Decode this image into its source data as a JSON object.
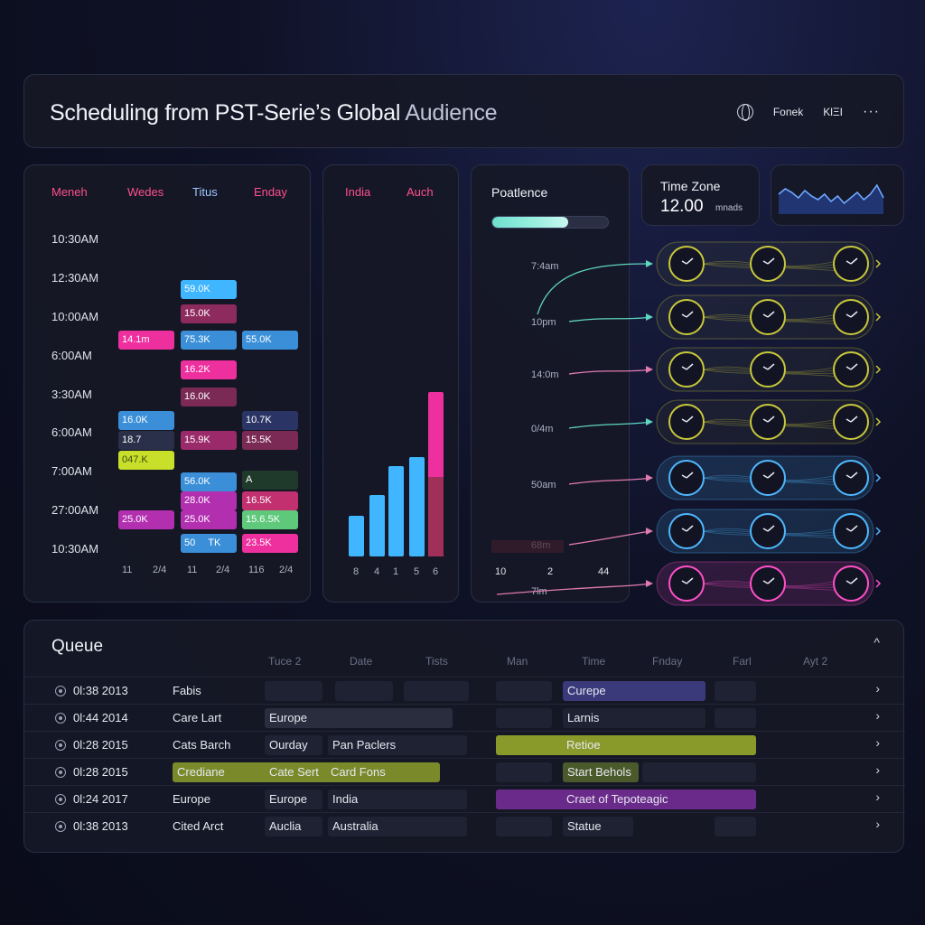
{
  "header": {
    "title_main": "Scheduling from PST-Serie’s Global",
    "title_light": "Audience",
    "action1": "Fonek",
    "action2": "KlΞI",
    "more": "···"
  },
  "schedule": {
    "days": [
      {
        "label": "Meneh",
        "color": "#ff4f8b"
      },
      {
        "label": "Wedes",
        "color": "#ff4f8b"
      },
      {
        "label": "Titus",
        "color": "#9cc7ff"
      },
      {
        "label": "Enday",
        "color": "#ff4f8b"
      }
    ],
    "times": [
      "10:30AM",
      "12:30AM",
      "10:00AM",
      "6:00AM",
      "3:30AM",
      "6:00AM",
      "7:00AM",
      "27:00AM",
      "10:30AM"
    ],
    "slots": [
      {
        "label": "59.0K",
        "col": 1,
        "row": 1,
        "color": "#3fb6ff"
      },
      {
        "label": "15.0K",
        "col": 1,
        "row": 2,
        "color": "#8e2b5e"
      },
      {
        "label": "14.1m",
        "col": 0,
        "row": 3,
        "color": "#ee2f9e"
      },
      {
        "label": "75.3K",
        "col": 1,
        "row": 3,
        "color": "#3a8fd8"
      },
      {
        "label": "55.0K",
        "col": 2,
        "row": 3,
        "color": "#3a8fd8"
      },
      {
        "label": "16.2K",
        "col": 1,
        "row": 4,
        "color": "#ee2f9e"
      },
      {
        "label": "16.0K",
        "col": 1,
        "row": 5,
        "color": "#7a2a55"
      },
      {
        "label": "16.0K",
        "col": 0,
        "row": 6,
        "color": "#3a8fd8"
      },
      {
        "label": "10.7K",
        "col": 2,
        "row": 6,
        "color": "#2a3566"
      },
      {
        "label": "18.7",
        "col": 0,
        "row": 7,
        "color": "#2a2f4a"
      },
      {
        "label": "15.9K",
        "col": 1,
        "row": 7,
        "color": "#9a2a6a"
      },
      {
        "label": "15.5K",
        "col": 2,
        "row": 7,
        "color": "#7a2a55"
      },
      {
        "label": "047.K",
        "col": 0,
        "row": 8,
        "color": "#c8e02a"
      },
      {
        "label": "A",
        "col": 2,
        "row": 9,
        "color": "#1f3a2a"
      },
      {
        "label": "56.0K",
        "col": 1,
        "row": 10,
        "color": "#3a8fd8"
      },
      {
        "label": "28.0K",
        "col": 1,
        "row": 11,
        "color": "#b22fb0"
      },
      {
        "label": "16.5K",
        "col": 2,
        "row": 11,
        "color": "#c2306f"
      },
      {
        "label": "25.0K",
        "col": 0,
        "row": 12,
        "color": "#b22fb0"
      },
      {
        "label": "25.0K",
        "col": 1,
        "row": 12,
        "color": "#b22fb0"
      },
      {
        "label": "15.6.5K",
        "col": 2,
        "row": 12,
        "color": "#5ec97a"
      },
      {
        "label": "50",
        "col": 1,
        "row": 13,
        "color": "#3a8fd8",
        "label2": "TK"
      },
      {
        "label": "23.5K",
        "col": 2,
        "row": 13,
        "color": "#ee2f9e"
      }
    ],
    "footer": [
      "11",
      "2/4",
      "11",
      "2/4",
      "116",
      "2/4"
    ]
  },
  "regions": {
    "headers": [
      "India",
      "Auch"
    ],
    "header_color": "#ff4f8b",
    "chart_data": {
      "type": "bar",
      "categories": [
        "8",
        "4",
        "1",
        "5",
        "6"
      ],
      "values": [
        45,
        68,
        100,
        110,
        182
      ],
      "overlay": {
        "category": "6",
        "value": 88,
        "color": "#a0305a"
      },
      "ylim": [
        0,
        200
      ],
      "colors": [
        "#3fb6ff",
        "#3fb6ff",
        "#3fb6ff",
        "#3fb6ff",
        "#ee2f9e"
      ]
    }
  },
  "audience": {
    "title": "Poatlence",
    "progress": 0.66,
    "labels": [
      "7:4am",
      "10pm",
      "14:0m",
      "0/4m",
      "50am",
      "68m",
      "7lm"
    ],
    "footer": [
      "10",
      "2",
      "44"
    ]
  },
  "timezone": {
    "label": "Time Zone",
    "value": "12.00",
    "unit": "mnads"
  },
  "sparkline": {
    "values": [
      0.55,
      0.7,
      0.6,
      0.45,
      0.65,
      0.5,
      0.4,
      0.55,
      0.35,
      0.5,
      0.3,
      0.45,
      0.6,
      0.4,
      0.55,
      0.8,
      0.45
    ]
  },
  "clocks": {
    "rows": [
      {
        "color": "#c8c83a"
      },
      {
        "color": "#c8c83a"
      },
      {
        "color": "#c8c83a"
      },
      {
        "color": "#c8c83a"
      },
      {
        "color": "#4fb8ff"
      },
      {
        "color": "#4fb8ff"
      },
      {
        "color": "#ff4fc8"
      }
    ]
  },
  "queue": {
    "title": "Queue",
    "columns": [
      "Tuce 2",
      "Date",
      "Tists",
      "Man",
      "Time",
      "Fnday",
      "Farl",
      "Ayt 2"
    ],
    "rows": [
      {
        "date": "0l:38 2013",
        "name": "Fabis",
        "c1": "",
        "c2": "",
        "c3": "",
        "c4": "Curepe",
        "c4color": "#3a3a7a"
      },
      {
        "date": "0l:44 2014",
        "name": "Care Lart",
        "c1": "Europe",
        "c2": "",
        "c3": "",
        "c4": "Larnis",
        "c4color": "#1f2233"
      },
      {
        "date": "0l:28 2015",
        "name": "Cats Barch",
        "c1": "Ourday",
        "c2": "Pan Paclers",
        "c3": "Retioe",
        "c3color": "#8a9a2a",
        "c4": "",
        "c4color": ""
      },
      {
        "date": "0l:28 2015",
        "name": "Crediane",
        "c1": "Cate Sert",
        "c2": "Card Fons",
        "c3": "",
        "c4": "Start Behols",
        "c4color": "#4a5a2a"
      },
      {
        "date": "0l:24 2017",
        "name": "Europe",
        "c1": "Europe",
        "c2": "India",
        "c3": "Craet of Tepoteagic",
        "c3color": "#6a2a8a",
        "c4": "",
        "c4color": ""
      },
      {
        "date": "0l:38 2013",
        "name": "Cited Arct",
        "c1": "Auclia",
        "c2": "Australia",
        "c3": "",
        "c4": "Statue",
        "c4color": "#1f2233"
      }
    ],
    "collapse": "^"
  }
}
